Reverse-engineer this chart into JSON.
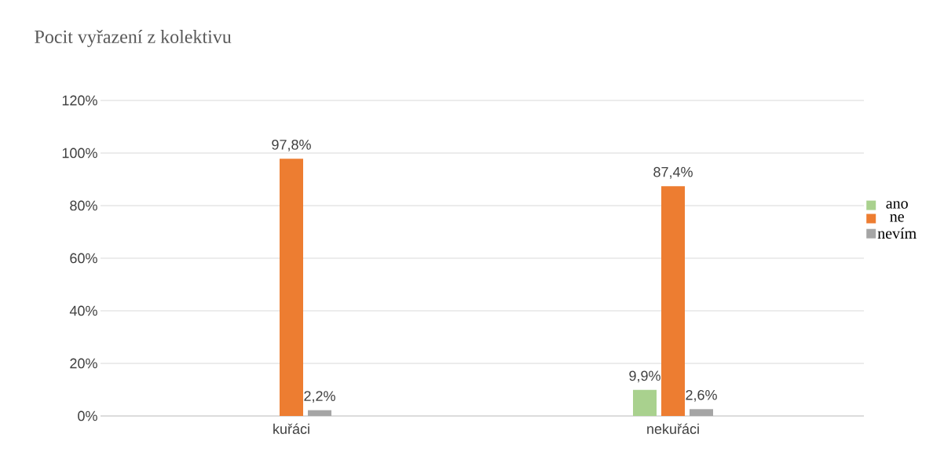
{
  "chart_data": {
    "type": "bar",
    "title": "Pocit vyřazení z kolektivu",
    "categories": [
      "kuřáci",
      "nekuřáci"
    ],
    "series": [
      {
        "name": "ano",
        "color": "#a9d18e",
        "values": [
          null,
          9.9
        ],
        "value_labels": [
          null,
          "9,9%"
        ]
      },
      {
        "name": "ne",
        "color": "#ed7d31",
        "values": [
          97.8,
          87.4
        ],
        "value_labels": [
          "97,8%",
          "87,4%"
        ]
      },
      {
        "name": "nevím",
        "color": "#a5a5a5",
        "values": [
          2.2,
          2.6
        ],
        "value_labels": [
          "2,2%",
          "2,6%"
        ]
      }
    ],
    "ylim": [
      0,
      120
    ],
    "yticks": [
      {
        "value": 0,
        "label": "0%"
      },
      {
        "value": 20,
        "label": "20%"
      },
      {
        "value": 40,
        "label": "40%"
      },
      {
        "value": 60,
        "label": "60%"
      },
      {
        "value": 80,
        "label": "80%"
      },
      {
        "value": 100,
        "label": "100%"
      },
      {
        "value": 120,
        "label": "120%"
      }
    ],
    "grid": "y",
    "legend": "right"
  }
}
